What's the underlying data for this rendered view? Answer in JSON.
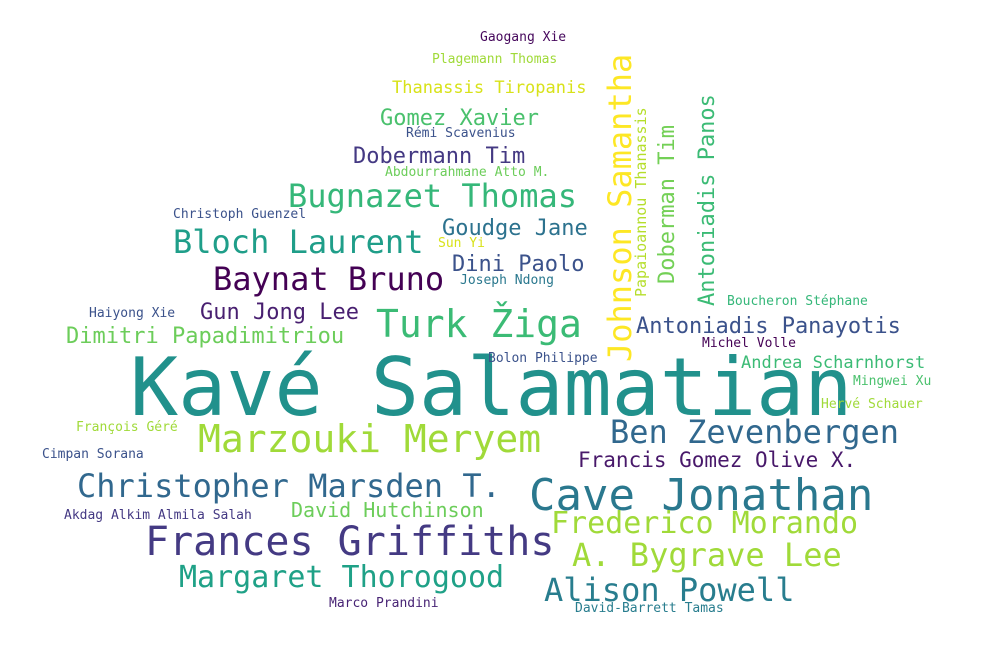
{
  "words": [
    {
      "text": "Kavé Salamatian",
      "color": "#21918c"
    },
    {
      "text": "Cave Jonathan",
      "color": "#2a788e"
    },
    {
      "text": "Frances Griffiths",
      "color": "#443a83"
    },
    {
      "text": "Marzouki Meryem",
      "color": "#a0da39"
    },
    {
      "text": "Christopher Marsden T.",
      "color": "#31688e"
    },
    {
      "text": "Bugnazet Thomas",
      "color": "#35b779"
    },
    {
      "text": "Turk Žiga",
      "color": "#3bbb75"
    },
    {
      "text": "Bloch Laurent",
      "color": "#1f9e89"
    },
    {
      "text": "Baynat Bruno",
      "color": "#440154"
    },
    {
      "text": "Johnson Samantha",
      "color": "#fde725"
    },
    {
      "text": "Ben Zevenbergen",
      "color": "#31688e"
    },
    {
      "text": "Alison Powell",
      "color": "#287d8e"
    },
    {
      "text": "Frederico Morando",
      "color": "#a0da39"
    },
    {
      "text": "A. Bygrave Lee",
      "color": "#a0da39"
    },
    {
      "text": "Margaret Thorogood",
      "color": "#1fa187"
    },
    {
      "text": "Antoniadis Panayotis",
      "color": "#3b528b"
    },
    {
      "text": "Francis Gomez Olive X.",
      "color": "#48186a"
    },
    {
      "text": "Dobermann Tim",
      "color": "#443983"
    },
    {
      "text": "Gomez Xavier",
      "color": "#4ac16d"
    },
    {
      "text": "Goudge Jane",
      "color": "#2c728e"
    },
    {
      "text": "Dini Paolo",
      "color": "#3b528b"
    },
    {
      "text": "Gun Jong Lee",
      "color": "#481f70"
    },
    {
      "text": "Dimitri Papadimitriou",
      "color": "#6ccd5a"
    },
    {
      "text": "David Hutchinson",
      "color": "#6ccd5a"
    },
    {
      "text": "Doberman Tim",
      "color": "#73d056"
    },
    {
      "text": "Antoniadis Panos",
      "color": "#3bbb75"
    },
    {
      "text": "Thanassis Tiropanis",
      "color": "#d8e219"
    },
    {
      "text": "Papaioannou Thanassis",
      "color": "#b5de2b"
    },
    {
      "text": "Andrea Scharnhorst",
      "color": "#3bbb75"
    },
    {
      "text": "Boucheron Stéphane",
      "color": "#35b779"
    },
    {
      "text": "Bolon Philippe",
      "color": "#3b528b"
    },
    {
      "text": "Michel Volle",
      "color": "#440154"
    },
    {
      "text": "Mingwei Xu",
      "color": "#4ac16d"
    },
    {
      "text": "Hervé Schauer",
      "color": "#a0da39"
    },
    {
      "text": "François Géré",
      "color": "#a0da39"
    },
    {
      "text": "Cimpan Sorana",
      "color": "#3b528b"
    },
    {
      "text": "Akdag Alkim Almila Salah",
      "color": "#443983"
    },
    {
      "text": "Marco Prandini",
      "color": "#482475"
    },
    {
      "text": "David-Barrett Tamas",
      "color": "#287d8e"
    },
    {
      "text": "Haiyong Xie",
      "color": "#3b528b"
    },
    {
      "text": "Joseph Ndong",
      "color": "#2a788e"
    },
    {
      "text": "Sun Yi",
      "color": "#d8e219"
    },
    {
      "text": "Christoph Guenzel",
      "color": "#3b528b"
    },
    {
      "text": "Abdourrahmane Atto M.",
      "color": "#6ccd5a"
    },
    {
      "text": "Rémi Scavenius",
      "color": "#3b528b"
    },
    {
      "text": "Plagemann Thomas",
      "color": "#a0da39"
    },
    {
      "text": "Gaogang Xie",
      "color": "#46085c"
    }
  ]
}
